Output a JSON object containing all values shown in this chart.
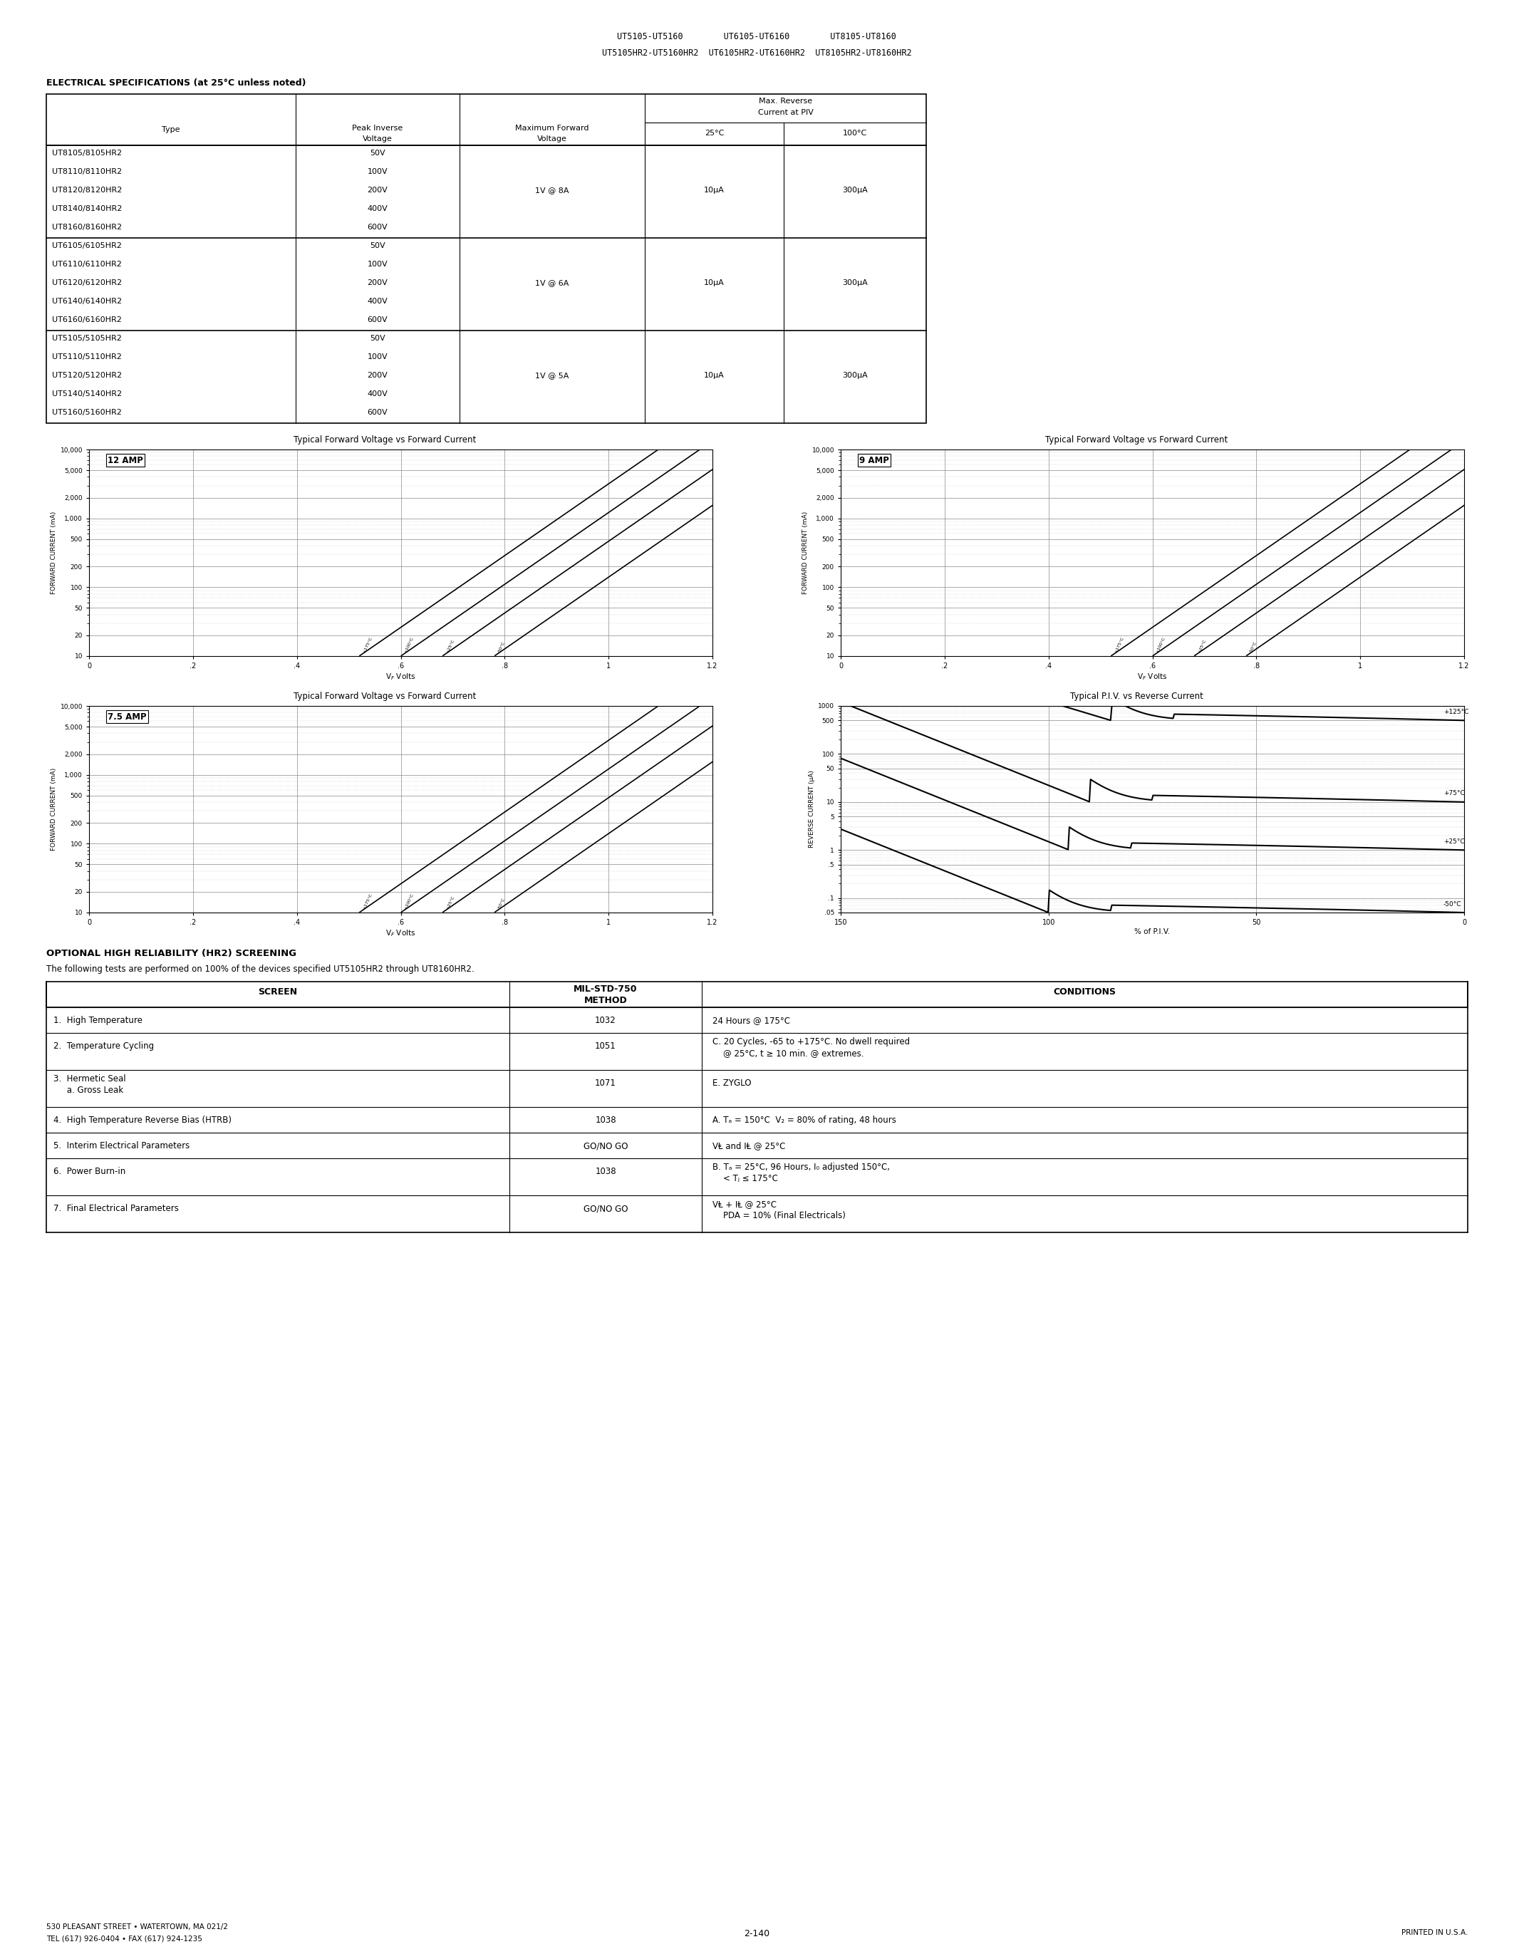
{
  "header_line1": "UT5105-UT5160        UT6105-UT6160        UT8105-UT8160",
  "header_line2": "UT5105HR2-UT5160HR2  UT6105HR2-UT6160HR2  UT8105HR2-UT8160HR2",
  "section1_title": "ELECTRICAL SPECIFICATIONS (at 25°C unless noted)",
  "table1_rows_g1": [
    "UT8105/8105HR2",
    "UT8110/8110HR2",
    "UT8120/8120HR2",
    "UT8140/8140HR2",
    "UT8160/8160HR2"
  ],
  "table1_rows_g2": [
    "UT6105/6105HR2",
    "UT6110/6110HR2",
    "UT6120/6120HR2",
    "UT6140/6140HR2",
    "UT6160/6160HR2"
  ],
  "table1_rows_g3": [
    "UT5105/5105HR2",
    "UT5110/5110HR2",
    "UT5120/5120HR2",
    "UT5140/5140HR2",
    "UT5160/5160HR2"
  ],
  "table1_voltages": [
    "50V",
    "100V",
    "200V",
    "400V",
    "600V"
  ],
  "table1_fwd_voltages": [
    "1V @ 8A",
    "1V @ 6A",
    "1V @ 5A"
  ],
  "table1_rev25": "10μA",
  "table1_rev100": "300μA",
  "graph1_title": "Typical Forward Voltage vs Forward Current",
  "graph1_amp": "12 AMP",
  "graph2_title": "Typical Forward Voltage vs Forward Current",
  "graph2_amp": "9 AMP",
  "graph3_title": "Typical Forward Voltage vs Forward Current",
  "graph3_amp": "7.5 AMP",
  "graph4_title": "Typical P.I.V. vs Reverse Current",
  "fwd_yticks": [
    10,
    20,
    50,
    100,
    200,
    500,
    1000,
    2000,
    5000,
    10000
  ],
  "fwd_ytick_labels": [
    "10",
    "20",
    "50",
    "100",
    "200",
    "500",
    "1,000",
    "2,000",
    "5,000",
    "10,000"
  ],
  "fwd_xticks": [
    0,
    0.2,
    0.4,
    0.6,
    0.8,
    1.0,
    1.2
  ],
  "fwd_xtick_labels": [
    "0",
    ".2",
    ".4",
    ".6",
    ".8",
    "1",
    "1.2"
  ],
  "piv_yticks": [
    0.05,
    0.1,
    0.5,
    1,
    5,
    10,
    50,
    100,
    500,
    1000
  ],
  "piv_ytick_labels": [
    ".05",
    ".1",
    ".5",
    "1",
    "5",
    "10",
    "50",
    "100",
    "500",
    "1000"
  ],
  "piv_xticks": [
    150,
    100,
    50,
    0
  ],
  "piv_xtick_labels": [
    "150",
    "100",
    "50",
    "0"
  ],
  "screen_section_title": "OPTIONAL HIGH RELIABILITY (HR2) SCREENING",
  "screen_section_subtitle": "The following tests are performed on 100% of the devices specified UT5105HR2 through UT8160HR2.",
  "screen_rows": [
    {
      "screen": "1.  High Temperature",
      "method": "1032",
      "conditions": "24 Hours @ 175°C",
      "multiline": false
    },
    {
      "screen": "2.  Temperature Cycling",
      "method": "1051",
      "conditions": "C. 20 Cycles, -65 to +175°C. No dwell required\n    @ 25°C, t ≥ 10 min. @ extremes.",
      "multiline": true
    },
    {
      "screen": "3.  Hermetic Seal\n     a. Gross Leak",
      "method": "1071",
      "conditions": "E. ZYGLO",
      "multiline": false
    },
    {
      "screen": "4.  High Temperature Reverse Bias (HTRB)",
      "method": "1038",
      "conditions": "A. Tₐ = 150°C  V₂ = 80% of rating, 48 hours",
      "multiline": false
    },
    {
      "screen": "5.  Interim Electrical Parameters",
      "method": "GO/NO GO",
      "conditions": "VⱠ and IⱠ @ 25°C",
      "multiline": false
    },
    {
      "screen": "6.  Power Burn-in",
      "method": "1038",
      "conditions": "B. Tₐ = 25°C, 96 Hours, I₀ adjusted 150°C,\n    < Tⱼ ≤ 175°C",
      "multiline": true
    },
    {
      "screen": "7.  Final Electrical Parameters",
      "method": "GO/NO GO",
      "conditions": "VⱠ + IⱠ @ 25°C\n    PDA = 10% (Final Electricals)",
      "multiline": true
    }
  ],
  "footer_left1": "530 PLEASANT STREET • WATERTOWN, MA 021/2",
  "footer_left2": "TEL (617) 926-0404 • FAX (617) 924-1235",
  "footer_center": "2-140",
  "footer_right": "PRINTED IN U.S.A."
}
